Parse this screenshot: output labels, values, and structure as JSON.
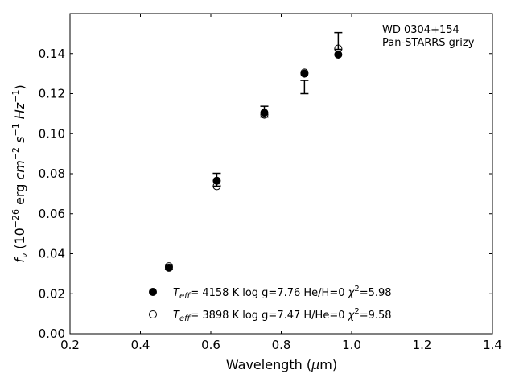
{
  "chart_data": {
    "type": "scatter",
    "xlabel": "Wavelength (μm)",
    "ylabel": "f_ν (10^-26 erg cm^-2 s^-1 Hz^-1)",
    "xlim": [
      0.2,
      1.4
    ],
    "ylim": [
      0.0,
      0.16
    ],
    "x_ticks": [
      "0.2",
      "0.4",
      "0.6",
      "0.8",
      "1.0",
      "1.2",
      "1.4"
    ],
    "y_ticks": [
      "0.00",
      "0.02",
      "0.04",
      "0.06",
      "0.08",
      "0.10",
      "0.12",
      "0.14"
    ],
    "grid": false,
    "annotation": [
      "WD 0304+154",
      "Pan-STARRS grizy"
    ],
    "observed": {
      "x": [
        0.481,
        0.617,
        0.752,
        0.866,
        0.962
      ],
      "y": [
        0.0333,
        0.077,
        0.111,
        0.1233,
        0.1463
      ],
      "yerr": [
        0.0012,
        0.0032,
        0.0027,
        0.0033,
        0.0042
      ]
    },
    "series": [
      {
        "name": "T_eff= 4158 K log g=7.76 He/H=0 χ²=5.98",
        "marker": "filled-circle",
        "x": [
          0.481,
          0.617,
          0.752,
          0.866,
          0.962
        ],
        "y": [
          0.033,
          0.0765,
          0.1105,
          0.13,
          0.1395
        ]
      },
      {
        "name": "T_eff= 3898 K log g=7.47 H/He=0 χ²=9.58",
        "marker": "open-circle",
        "x": [
          0.481,
          0.617,
          0.752,
          0.866,
          0.962
        ],
        "y": [
          0.0337,
          0.0738,
          0.1095,
          0.1305,
          0.1425
        ]
      }
    ],
    "legend_placement": "lower-center"
  }
}
